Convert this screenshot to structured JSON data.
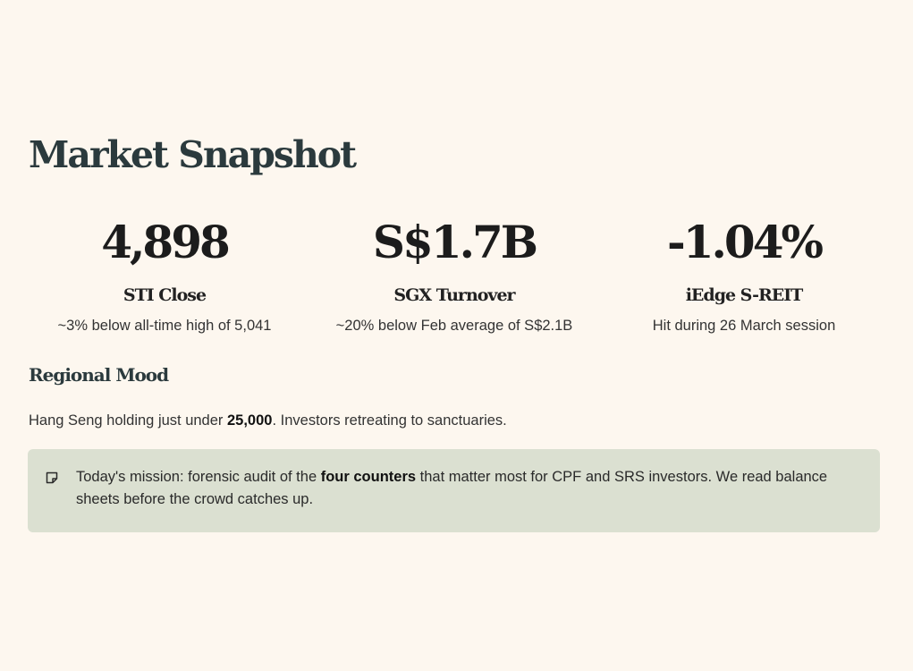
{
  "title": "Market Snapshot",
  "stats": [
    {
      "value": "4,898",
      "label": "STI Close",
      "note": "~3% below all-time high of 5,041"
    },
    {
      "value": "S$1.7B",
      "label": "SGX Turnover",
      "note": "~20% below Feb average of S$2.1B"
    },
    {
      "value": "-1.04%",
      "label": "iEdge S-REIT",
      "note": "Hit during 26 March session"
    }
  ],
  "regional": {
    "heading": "Regional Mood",
    "text_before": "Hang Seng holding just under ",
    "text_bold": "25,000",
    "text_after": ". Investors retreating to sanctuaries."
  },
  "callout": {
    "icon": "note-icon",
    "text_before": "Today's mission: forensic audit of the ",
    "text_bold": "four counters",
    "text_after": " that matter most for CPF and SRS investors. We read balance sheets before the crowd catches up."
  },
  "colors": {
    "background": "#fdf7ef",
    "heading": "#2b3a3d",
    "callout_background": "#dbe0d1"
  }
}
